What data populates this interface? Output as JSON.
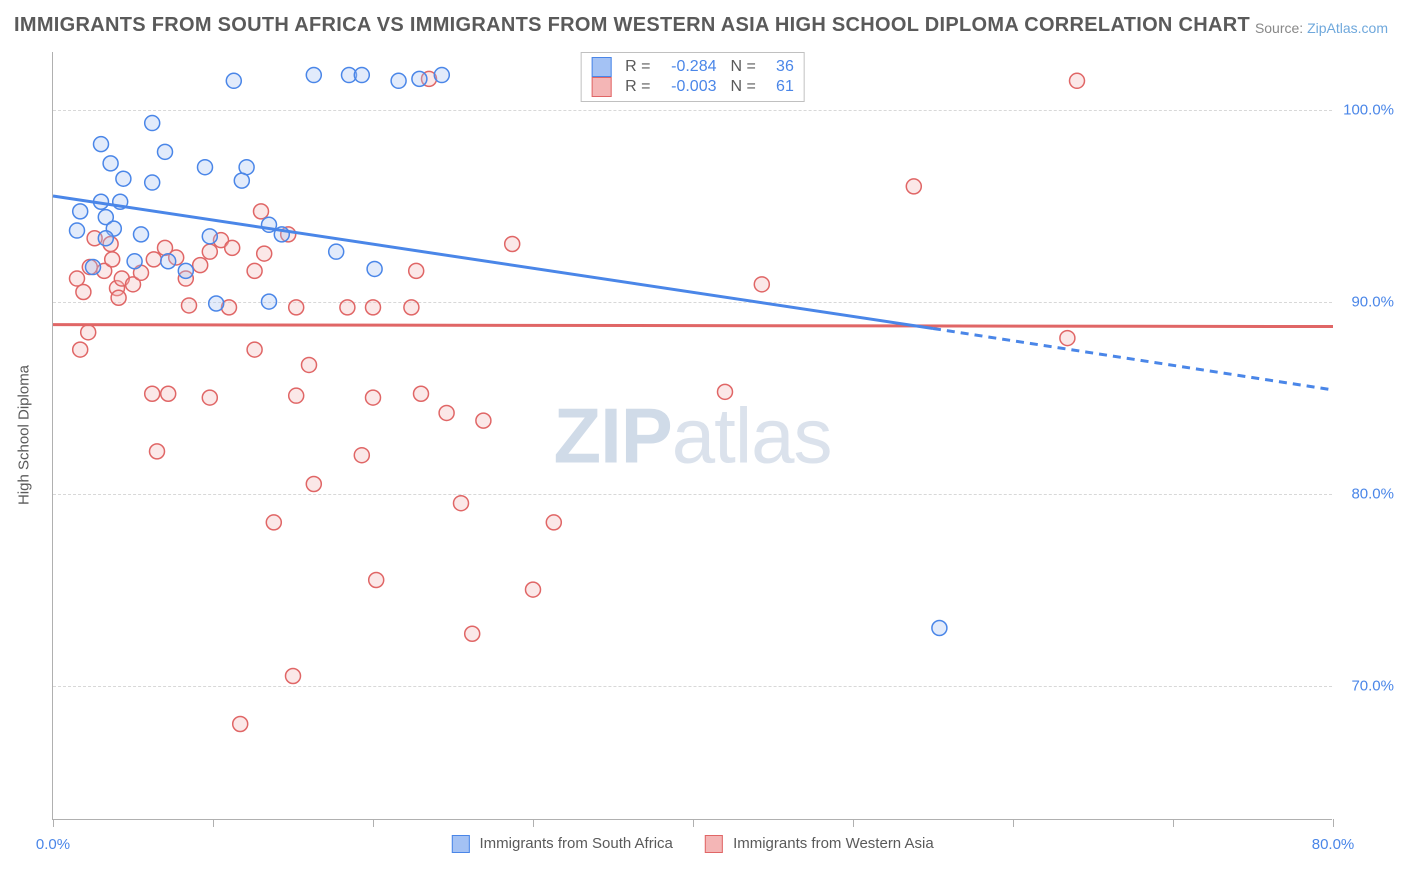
{
  "title": "IMMIGRANTS FROM SOUTH AFRICA VS IMMIGRANTS FROM WESTERN ASIA HIGH SCHOOL DIPLOMA CORRELATION CHART",
  "source_label": "Source: ",
  "source_link": "ZipAtlas.com",
  "ylabel": "High School Diploma",
  "watermark_bold": "ZIP",
  "watermark_light": "atlas",
  "chart": {
    "type": "scatter",
    "xlim": [
      0,
      80
    ],
    "ylim": [
      63,
      103
    ],
    "background_color": "#ffffff",
    "grid_color": "#d8d8d8",
    "axis_color": "#b0b0b0",
    "tick_label_color": "#4a86e8",
    "label_color": "#5a5a5a",
    "label_fontsize": 15,
    "tick_fontsize": 15,
    "marker_radius": 7.5,
    "marker_stroke_width": 1.5,
    "marker_fill_opacity": 0.32,
    "trend_line_width": 3,
    "yticks": [
      70,
      80,
      90,
      100
    ],
    "ytick_labels": [
      "70.0%",
      "80.0%",
      "90.0%",
      "100.0%"
    ],
    "xticks": [
      0,
      10,
      20,
      30,
      40,
      50,
      60,
      70,
      80
    ],
    "xtick_labels_visible": {
      "0": "0.0%",
      "80": "80.0%"
    },
    "series": [
      {
        "name": "Immigrants from South Africa",
        "color_stroke": "#4a86e8",
        "color_fill": "#a4c2f4",
        "R": "-0.284",
        "N": "36",
        "trend": {
          "x1": 0,
          "y1": 95.5,
          "x2": 55,
          "y2": 88.6,
          "style": "solid"
        },
        "trend_extension": {
          "x1": 55,
          "y1": 88.6,
          "x2": 80,
          "y2": 85.4,
          "style": "dashed"
        },
        "points": [
          [
            3,
            95.2
          ],
          [
            3.3,
            94.4
          ],
          [
            4.2,
            95.2
          ],
          [
            4.4,
            96.4
          ],
          [
            6.2,
            99.3
          ],
          [
            7.2,
            92.1
          ],
          [
            8.3,
            91.6
          ],
          [
            9.8,
            93.4
          ],
          [
            9.5,
            97.0
          ],
          [
            5.1,
            92.1
          ],
          [
            11.3,
            101.5
          ],
          [
            12.1,
            97.0
          ],
          [
            13.5,
            90.0
          ],
          [
            16.3,
            101.8
          ],
          [
            18.5,
            101.8
          ],
          [
            19.3,
            101.8
          ],
          [
            21.6,
            101.5
          ],
          [
            13.5,
            94.0
          ],
          [
            14.3,
            93.5
          ],
          [
            17.7,
            92.6
          ],
          [
            20.1,
            91.7
          ],
          [
            5.5,
            93.5
          ],
          [
            3.8,
            93.8
          ],
          [
            2.5,
            91.8
          ],
          [
            3.3,
            93.3
          ],
          [
            1.5,
            93.7
          ],
          [
            1.7,
            94.7
          ],
          [
            7.0,
            97.8
          ],
          [
            6.2,
            96.2
          ],
          [
            3.0,
            98.2
          ],
          [
            3.6,
            97.2
          ],
          [
            11.8,
            96.3
          ],
          [
            10.2,
            89.9
          ],
          [
            22.9,
            101.6
          ],
          [
            24.3,
            101.8
          ],
          [
            55.4,
            73.0
          ]
        ]
      },
      {
        "name": "Immigrants from Western Asia",
        "color_stroke": "#e06666",
        "color_fill": "#f4b6b6",
        "R": "-0.003",
        "N": "61",
        "trend": {
          "x1": 0,
          "y1": 88.8,
          "x2": 80,
          "y2": 88.7,
          "style": "solid"
        },
        "points": [
          [
            1.5,
            91.2
          ],
          [
            1.9,
            90.5
          ],
          [
            2.3,
            91.8
          ],
          [
            2.6,
            93.3
          ],
          [
            3.2,
            91.6
          ],
          [
            3.6,
            93.0
          ],
          [
            4.0,
            90.7
          ],
          [
            4.3,
            91.2
          ],
          [
            5.0,
            90.9
          ],
          [
            5.5,
            91.5
          ],
          [
            6.3,
            92.2
          ],
          [
            7.0,
            92.8
          ],
          [
            7.7,
            92.3
          ],
          [
            8.3,
            91.2
          ],
          [
            9.2,
            91.9
          ],
          [
            9.8,
            92.6
          ],
          [
            10.5,
            93.2
          ],
          [
            11.2,
            92.8
          ],
          [
            13.2,
            92.5
          ],
          [
            12.6,
            91.6
          ],
          [
            13.0,
            94.7
          ],
          [
            14.7,
            93.5
          ],
          [
            1.7,
            87.5
          ],
          [
            2.2,
            88.4
          ],
          [
            4.1,
            90.2
          ],
          [
            8.5,
            89.8
          ],
          [
            11.0,
            89.7
          ],
          [
            12.6,
            87.5
          ],
          [
            15.2,
            89.7
          ],
          [
            18.4,
            89.7
          ],
          [
            20.0,
            89.7
          ],
          [
            22.4,
            89.7
          ],
          [
            22.7,
            91.6
          ],
          [
            9.8,
            85.0
          ],
          [
            20.0,
            85.0
          ],
          [
            3.7,
            92.2
          ],
          [
            6.2,
            85.2
          ],
          [
            7.2,
            85.2
          ],
          [
            15.2,
            85.1
          ],
          [
            16.0,
            86.7
          ],
          [
            6.5,
            82.2
          ],
          [
            16.3,
            80.5
          ],
          [
            24.6,
            84.2
          ],
          [
            26.9,
            83.8
          ],
          [
            11.7,
            68.0
          ],
          [
            15.0,
            70.5
          ],
          [
            20.2,
            75.5
          ],
          [
            26.2,
            72.7
          ],
          [
            25.5,
            79.5
          ],
          [
            30.0,
            75.0
          ],
          [
            31.3,
            78.5
          ],
          [
            23.5,
            101.6
          ],
          [
            28.7,
            93.0
          ],
          [
            42.0,
            85.3
          ],
          [
            44.3,
            90.9
          ],
          [
            53.8,
            96.0
          ],
          [
            64.0,
            101.5
          ],
          [
            63.4,
            88.1
          ],
          [
            13.8,
            78.5
          ],
          [
            23.0,
            85.2
          ],
          [
            19.3,
            82.0
          ]
        ]
      }
    ]
  }
}
